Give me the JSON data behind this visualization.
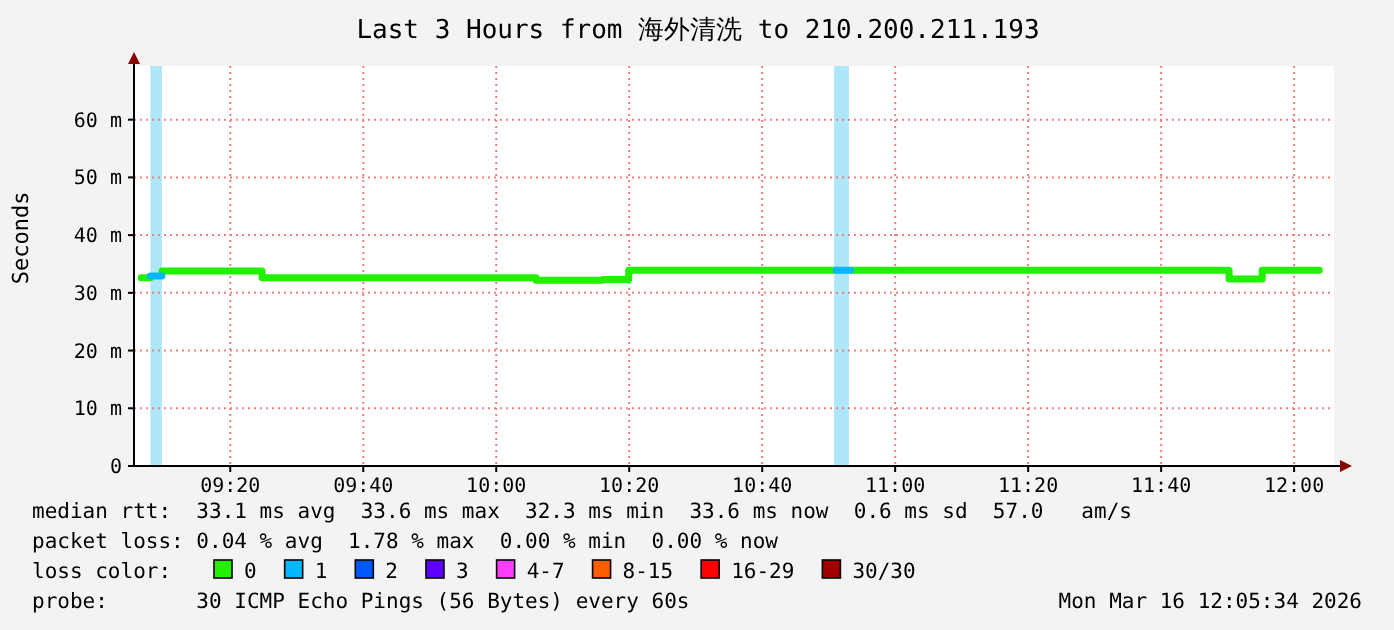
{
  "chart_data": {
    "type": "step",
    "title": "Last 3 Hours from 海外清洗 to 210.200.211.193",
    "ylabel": "Seconds",
    "xlim": [
      9.092,
      12.1
    ],
    "xticks": [
      {
        "value": 9.3333,
        "label": "09:20"
      },
      {
        "value": 9.6667,
        "label": "09:40"
      },
      {
        "value": 10,
        "label": "10:00"
      },
      {
        "value": 10.3333,
        "label": "10:20"
      },
      {
        "value": 10.6667,
        "label": "10:40"
      },
      {
        "value": 11,
        "label": "11:00"
      },
      {
        "value": 11.3333,
        "label": "11:20"
      },
      {
        "value": 11.6667,
        "label": "11:40"
      },
      {
        "value": 12,
        "label": "12:00"
      }
    ],
    "ylim": [
      0,
      69.3
    ],
    "yticks": [
      0,
      {
        "value": 10,
        "label": "10 m"
      },
      {
        "value": 20,
        "label": "20 m"
      },
      {
        "value": 30,
        "label": "30 m"
      },
      {
        "value": 40,
        "label": "40 m"
      },
      {
        "value": 50,
        "label": "50 m"
      },
      {
        "value": 60,
        "label": "60 m"
      }
    ],
    "grid": true,
    "legend": "bottom",
    "legend_title": "loss color:",
    "series": [
      {
        "name": "0",
        "color": "#22f000",
        "x": [
          9.11,
          9.133,
          9.162,
          9.413,
          10.1,
          10.267,
          10.332,
          10.852,
          10.888,
          11.837,
          11.92,
          12.063
        ],
        "values": [
          32.6,
          null,
          33.8,
          32.6,
          32.2,
          32.3,
          33.9,
          null,
          33.9,
          32.4,
          33.9,
          33.9
        ]
      },
      {
        "name": "1",
        "color": "#00b8ff",
        "x": [
          9.133,
          9.162,
          10.852,
          10.888
        ],
        "values": [
          32.9,
          null,
          33.9,
          33.9
        ]
      },
      {
        "name": "2",
        "color": "#0059ff"
      },
      {
        "name": "3",
        "color": "#5e00ff"
      },
      {
        "name": "4-7",
        "color": "#ff3dff"
      },
      {
        "name": "8-15",
        "color": "#ff5e00"
      },
      {
        "name": "16-29",
        "color": "#ff0000"
      },
      {
        "name": "30/30",
        "color": "#a10000"
      }
    ],
    "bands": [
      {
        "axis": "x",
        "from": 9.133,
        "to": 9.162,
        "color": "#aee6fa"
      },
      {
        "axis": "x",
        "from": 10.847,
        "to": 10.884,
        "color": "#aee6fa"
      }
    ],
    "annotations": [
      "median rtt:  33.1 ms avg  33.6 ms max  32.3 ms min  33.6 ms now  0.6 ms sd  57.0   am/s",
      "packet loss: 0.04 % avg  1.78 % max  0.00 % min  0.00 % now",
      "probe:       30 ICMP Echo Pings (56 Bytes) every 60s",
      "Mon Mar 16 12:05:34 2026"
    ]
  }
}
